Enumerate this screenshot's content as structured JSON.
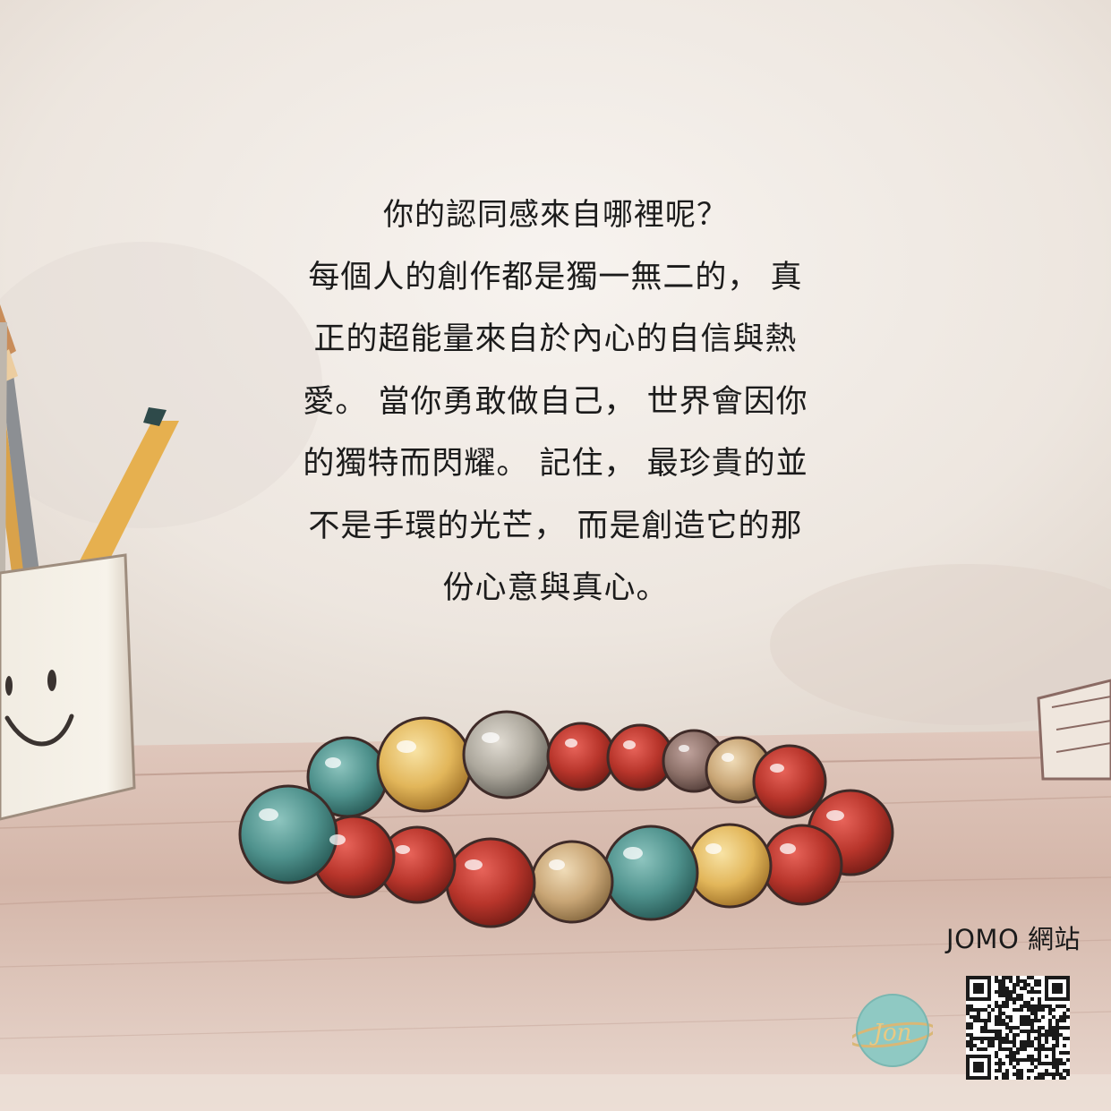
{
  "poem": {
    "lines": [
      "你的認同感來自哪裡呢？",
      "每個人的創作都是獨一無二的， 真",
      "正的超能量來自於內心的自信與熱",
      "愛。 當你勇敢做自己， 世界會因你",
      "的獨特而閃耀。 記住， 最珍貴的並",
      "不是手環的光芒， 而是創造它的那",
      "份心意與真心。"
    ]
  },
  "footer": {
    "site_label": "JOMO 網站",
    "logo_text": "Jon"
  },
  "colors": {
    "background": "#f1ebe5",
    "table": "#c9a99c",
    "bead_red": "#b83a2e",
    "bead_teal": "#4f938f",
    "bead_yellow": "#e3b75c",
    "logo_bg": "#8fc9c3"
  }
}
